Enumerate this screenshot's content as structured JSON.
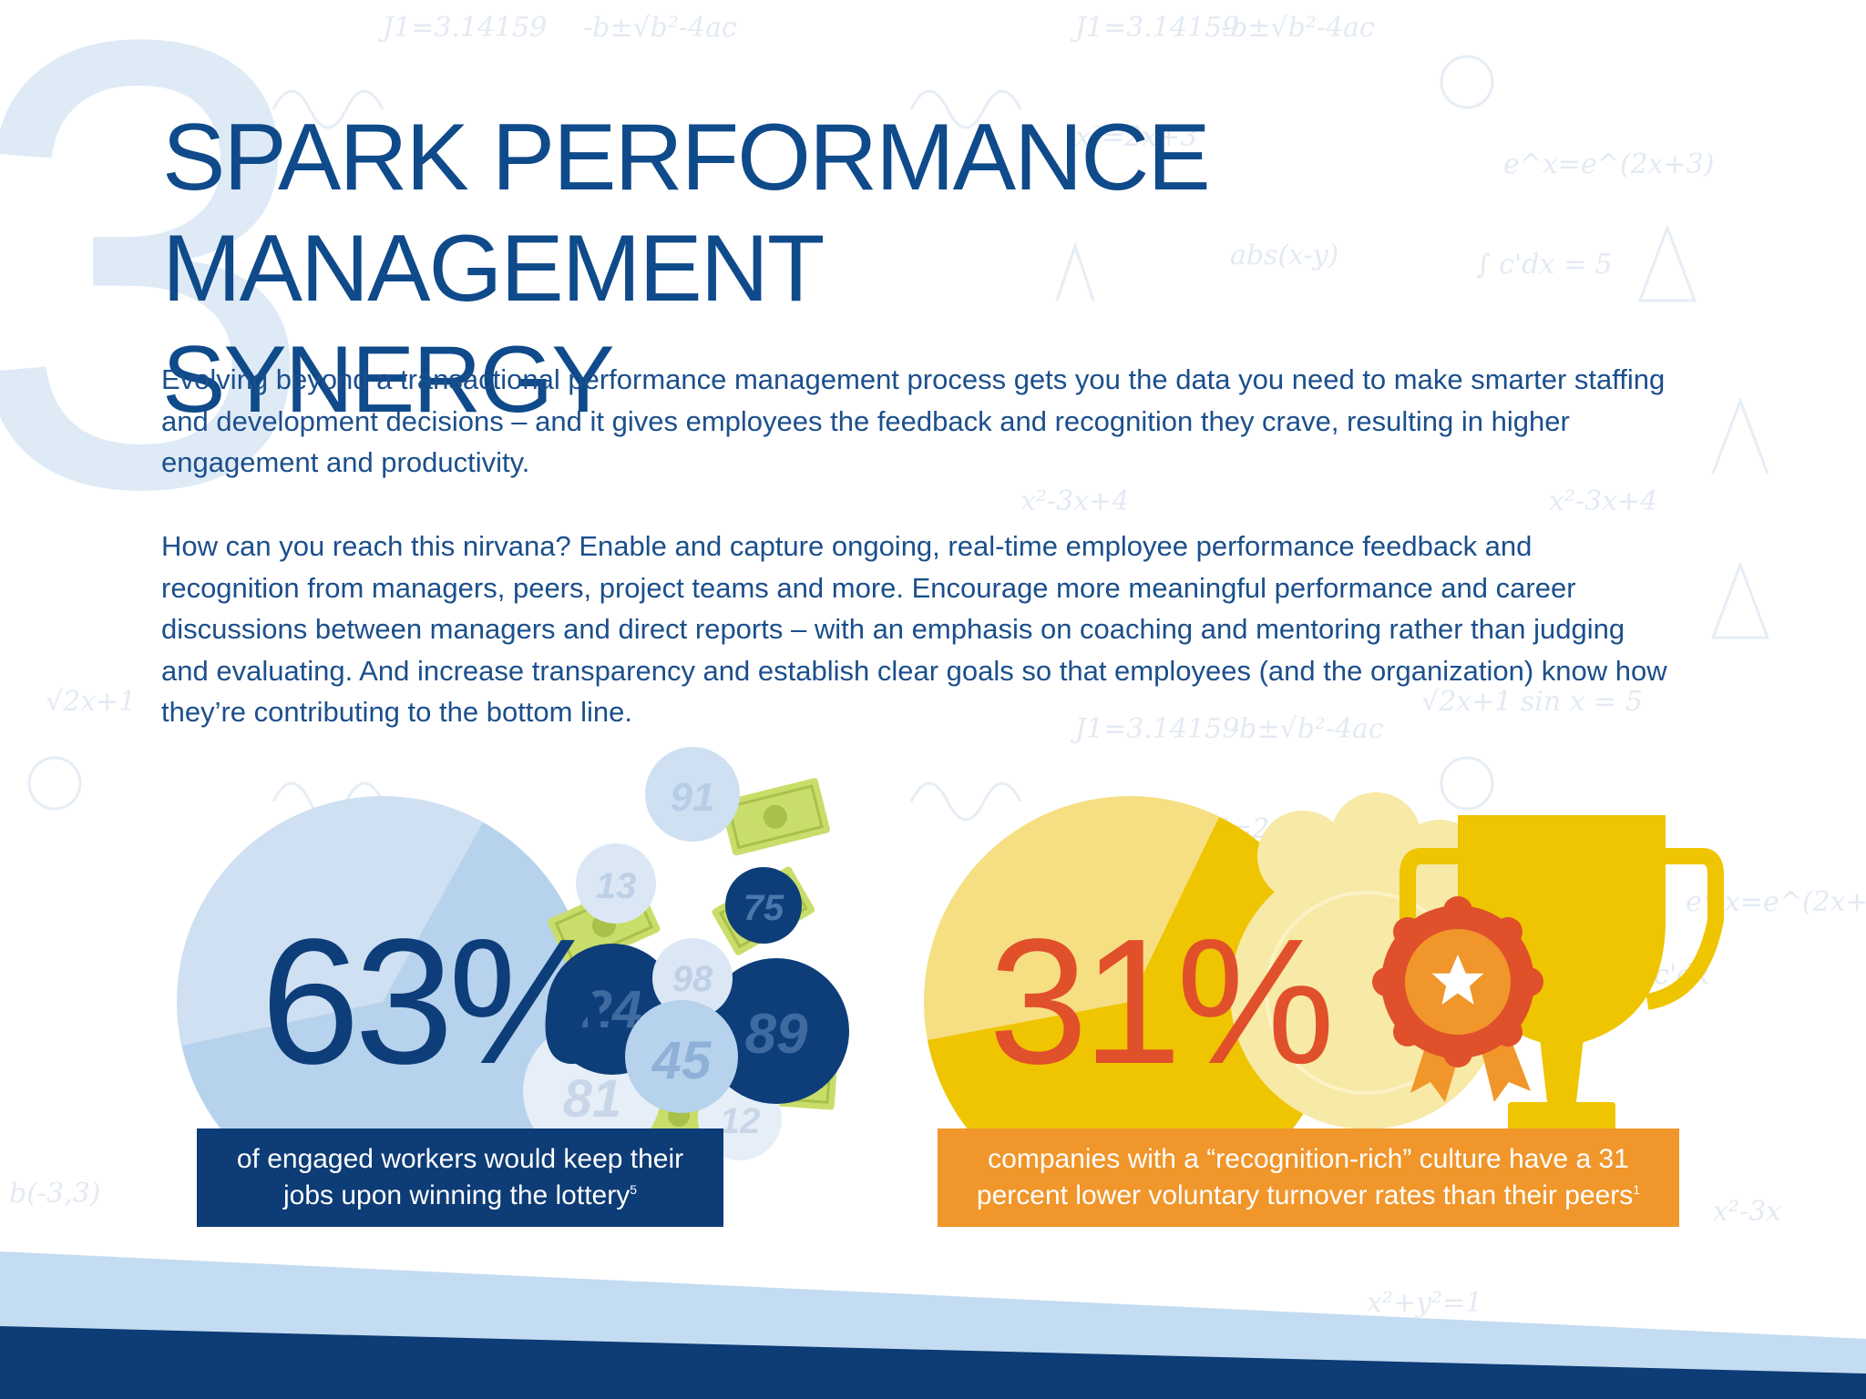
{
  "section_number": "3",
  "title": {
    "line1": "SPARK PERFORMANCE",
    "line2": "MANAGEMENT SYNERGY"
  },
  "paragraphs": [
    "Evolving beyond a transactional performance management process gets you the data you need to make smarter staffing and development decisions – and it gives employees the feedback and recognition they crave, resulting in higher engagement and productivity.",
    "How can you reach this nirvana? Enable and capture ongoing, real-time employee performance feedback and recognition from managers, peers, project teams and more. Encourage more meaningful performance and career discussions between managers and direct reports – with an emphasis on coaching and mentoring rather than judging and evaluating. And increase transparency and establish clear goals so that employees (and the organization) know how they’re contributing to the bottom line."
  ],
  "stats": [
    {
      "value": "63%",
      "caption_line1": "of engaged workers would keep their",
      "caption_line2": "jobs upon winning the lottery",
      "footnote": "5",
      "balls": [
        "91",
        "13",
        "75",
        "98",
        "24",
        "89",
        "45",
        "81",
        "12"
      ]
    },
    {
      "value": "31%",
      "caption_line1": "companies with a “recognition-rich” culture have a 31",
      "caption_line2": "percent lower voluntary turnover rates than their peers",
      "footnote": "1"
    }
  ],
  "colors": {
    "navy": "#0d3c76",
    "title_blue": "#0f4a8a",
    "pale_blue": "#d6e5f4",
    "orange": "#f0962b",
    "red_orange": "#e0502a",
    "gold": "#f2c400",
    "money_green": "#c9dd6a"
  }
}
